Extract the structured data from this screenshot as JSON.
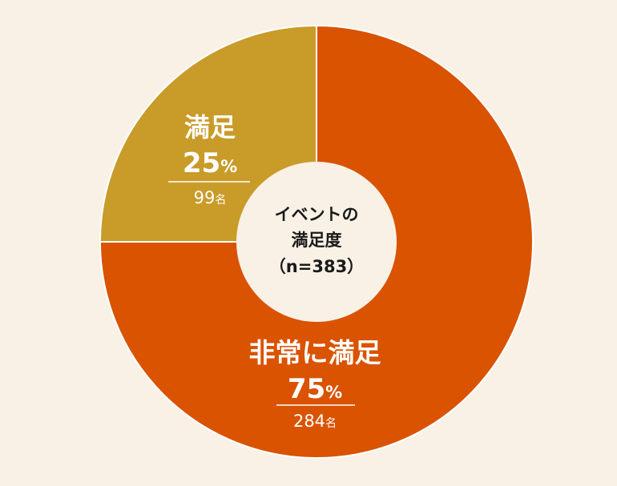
{
  "chart_data": {
    "type": "pie",
    "center_label": [
      "イベントの",
      "満足度",
      "（n=383）"
    ],
    "slices": [
      {
        "label": "非常に満足",
        "value": 75,
        "count": 284,
        "percent_label": "75",
        "count_label": "284",
        "color": "#d95300"
      },
      {
        "label": "満足",
        "value": 25,
        "count": 99,
        "percent_label": "25",
        "count_label": "99",
        "color": "#c99b28"
      }
    ],
    "percent_unit": "%",
    "count_unit": "名",
    "slice_border_color": "#ffffff",
    "center_color": "#f9f1e6",
    "background_color": "#f9f1e6"
  }
}
